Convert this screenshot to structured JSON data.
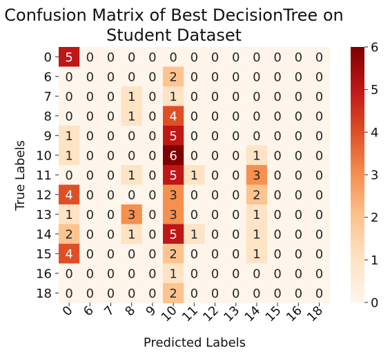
{
  "chart_data": {
    "type": "heatmap",
    "title_lines": [
      "Confusion Matrix of Best DecisionTree on",
      "Student Dataset"
    ],
    "xlabel": "Predicted Labels",
    "ylabel": "True Labels",
    "x_labels": [
      "0",
      "6",
      "7",
      "8",
      "9",
      "10",
      "11",
      "12",
      "13",
      "14",
      "15",
      "16",
      "18"
    ],
    "y_labels": [
      "0",
      "6",
      "7",
      "8",
      "9",
      "10",
      "11",
      "12",
      "13",
      "14",
      "15",
      "16",
      "18"
    ],
    "values": [
      [
        5,
        0,
        0,
        0,
        0,
        0,
        0,
        0,
        0,
        0,
        0,
        0,
        0
      ],
      [
        0,
        0,
        0,
        0,
        0,
        2,
        0,
        0,
        0,
        0,
        0,
        0,
        0
      ],
      [
        0,
        0,
        0,
        1,
        0,
        1,
        0,
        0,
        0,
        0,
        0,
        0,
        0
      ],
      [
        0,
        0,
        0,
        1,
        0,
        4,
        0,
        0,
        0,
        0,
        0,
        0,
        0
      ],
      [
        1,
        0,
        0,
        0,
        0,
        5,
        0,
        0,
        0,
        0,
        0,
        0,
        0
      ],
      [
        1,
        0,
        0,
        0,
        0,
        6,
        0,
        0,
        0,
        1,
        0,
        0,
        0
      ],
      [
        0,
        0,
        0,
        1,
        0,
        5,
        1,
        0,
        0,
        3,
        0,
        0,
        0
      ],
      [
        4,
        0,
        0,
        0,
        0,
        3,
        0,
        0,
        0,
        2,
        0,
        0,
        0
      ],
      [
        1,
        0,
        0,
        3,
        0,
        3,
        0,
        0,
        0,
        1,
        0,
        0,
        0
      ],
      [
        2,
        0,
        0,
        1,
        0,
        5,
        1,
        0,
        0,
        1,
        0,
        0,
        0
      ],
      [
        4,
        0,
        0,
        0,
        0,
        2,
        0,
        0,
        0,
        1,
        0,
        0,
        0
      ],
      [
        0,
        0,
        0,
        0,
        0,
        1,
        0,
        0,
        0,
        0,
        0,
        0,
        0
      ],
      [
        0,
        0,
        0,
        0,
        0,
        2,
        0,
        0,
        0,
        0,
        0,
        0,
        0
      ]
    ],
    "colorbar": {
      "min": 0,
      "max": 6,
      "ticks": [
        "0",
        "1",
        "2",
        "3",
        "4",
        "5",
        "6"
      ]
    },
    "colormap": "OrRd",
    "colormap_stops": [
      "#fff5eb",
      "#fee3c5",
      "#fdc48f",
      "#f5904e",
      "#df4f26",
      "#bf1616",
      "#7f0000"
    ]
  }
}
